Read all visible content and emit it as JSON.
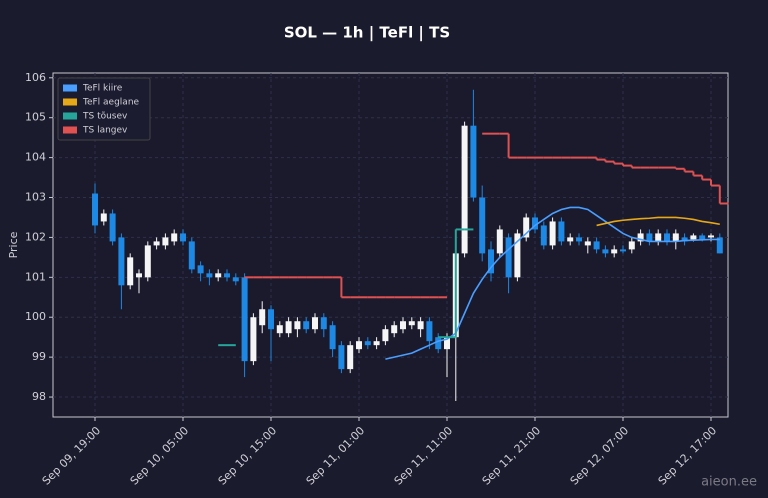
{
  "chart_data": {
    "type": "candlestick",
    "title": "SOL — 1h  |  TeFl  |  TS",
    "ylabel": "Price",
    "watermark": "aieon.ee",
    "categories": [
      "Sep 09, 19:00",
      null,
      null,
      null,
      null,
      null,
      null,
      null,
      null,
      null,
      "Sep 10, 05:00",
      null,
      null,
      null,
      null,
      null,
      null,
      null,
      null,
      null,
      "Sep 10, 15:00",
      null,
      null,
      null,
      null,
      null,
      null,
      null,
      null,
      null,
      "Sep 11, 01:00",
      null,
      null,
      null,
      null,
      null,
      null,
      null,
      null,
      null,
      "Sep 11, 11:00",
      null,
      null,
      null,
      null,
      null,
      null,
      null,
      null,
      null,
      "Sep 11, 21:00",
      null,
      null,
      null,
      null,
      null,
      null,
      null,
      null,
      null,
      "Sep 12, 07:00",
      null,
      null,
      null,
      null,
      null,
      null,
      null,
      null,
      null,
      "Sep 12, 17:00",
      null
    ],
    "open": [
      103.1,
      102.4,
      102.6,
      102.0,
      100.8,
      101.0,
      101.0,
      101.8,
      101.8,
      101.9,
      102.1,
      101.9,
      101.3,
      101.1,
      101.0,
      101.1,
      101.0,
      101.0,
      98.9,
      99.8,
      100.2,
      99.6,
      99.6,
      99.7,
      99.9,
      99.7,
      100.0,
      99.8,
      99.3,
      98.7,
      99.2,
      99.4,
      99.3,
      99.4,
      99.6,
      99.7,
      99.8,
      99.7,
      99.9,
      99.5,
      99.2,
      99.5,
      101.6,
      104.8,
      103.0,
      101.7,
      101.6,
      102.0,
      101.0,
      102.0,
      102.5,
      102.3,
      101.8,
      102.4,
      101.9,
      102.0,
      101.8,
      101.9,
      101.7,
      101.6,
      101.7,
      101.7,
      101.9,
      102.1,
      101.9,
      102.1,
      101.9,
      102.0,
      101.95,
      102.05,
      102.0,
      102.0
    ],
    "high": [
      103.35,
      102.7,
      102.7,
      102.1,
      101.6,
      101.2,
      101.9,
      102.0,
      102.1,
      102.2,
      102.2,
      102.0,
      101.4,
      101.2,
      101.2,
      101.2,
      101.1,
      101.1,
      100.1,
      100.4,
      100.3,
      99.9,
      100.0,
      100.0,
      100.0,
      100.1,
      100.1,
      99.9,
      99.4,
      99.4,
      99.5,
      99.5,
      99.5,
      99.8,
      99.9,
      100.0,
      100.0,
      100.0,
      100.0,
      99.6,
      99.6,
      101.7,
      104.9,
      105.7,
      103.3,
      101.9,
      102.3,
      102.1,
      102.2,
      102.6,
      102.6,
      102.4,
      102.5,
      102.5,
      102.1,
      102.1,
      102.0,
      102.0,
      101.8,
      101.8,
      101.8,
      102.0,
      102.2,
      102.2,
      102.2,
      102.2,
      102.2,
      102.1,
      102.1,
      102.1,
      102.1,
      102.1
    ],
    "low": [
      102.1,
      102.3,
      101.8,
      100.2,
      100.7,
      100.6,
      100.9,
      101.7,
      101.7,
      101.8,
      101.8,
      101.1,
      100.9,
      100.8,
      100.9,
      100.9,
      100.8,
      98.5,
      98.8,
      99.6,
      98.9,
      99.5,
      99.5,
      99.5,
      99.6,
      99.6,
      99.5,
      99.0,
      98.6,
      98.6,
      99.1,
      99.2,
      99.2,
      99.3,
      99.5,
      99.6,
      99.7,
      99.5,
      99.2,
      99.1,
      98.5,
      97.9,
      101.5,
      102.9,
      101.4,
      100.9,
      101.5,
      100.6,
      100.9,
      101.9,
      102.1,
      101.7,
      101.7,
      101.8,
      101.8,
      101.8,
      101.6,
      101.6,
      101.5,
      101.5,
      101.6,
      101.6,
      101.8,
      101.8,
      101.8,
      101.8,
      101.7,
      101.8,
      101.9,
      101.9,
      101.9,
      101.6
    ],
    "close": [
      102.3,
      102.6,
      101.9,
      100.8,
      101.5,
      101.1,
      101.8,
      101.9,
      102.0,
      102.1,
      101.9,
      101.2,
      101.1,
      101.0,
      101.1,
      101.0,
      100.9,
      98.9,
      100.0,
      100.2,
      99.7,
      99.8,
      99.9,
      99.9,
      99.7,
      100.0,
      99.7,
      99.2,
      98.7,
      99.3,
      99.4,
      99.3,
      99.4,
      99.7,
      99.8,
      99.9,
      99.9,
      99.9,
      99.4,
      99.2,
      99.5,
      101.6,
      104.8,
      103.0,
      101.6,
      101.1,
      102.2,
      101.0,
      102.1,
      102.5,
      102.2,
      101.8,
      102.4,
      101.9,
      102.0,
      101.9,
      101.9,
      101.7,
      101.6,
      101.7,
      101.65,
      101.9,
      102.1,
      101.9,
      102.1,
      101.9,
      102.1,
      101.9,
      102.05,
      101.95,
      102.05,
      101.6
    ],
    "up_color": "#f5f5f5",
    "down_color": "#1e88e5",
    "series": [
      {
        "name": "TeFl kiire",
        "color": "#4a9eff",
        "style": "line",
        "values": [
          null,
          null,
          null,
          null,
          null,
          null,
          null,
          null,
          null,
          null,
          null,
          null,
          null,
          null,
          null,
          null,
          null,
          null,
          null,
          null,
          null,
          null,
          null,
          null,
          null,
          null,
          null,
          null,
          null,
          null,
          null,
          null,
          null,
          98.95,
          99.0,
          99.05,
          99.1,
          99.2,
          99.3,
          99.4,
          99.45,
          99.6,
          100.1,
          100.6,
          100.95,
          101.25,
          101.5,
          101.7,
          101.9,
          102.1,
          102.3,
          102.45,
          102.6,
          102.7,
          102.75,
          102.75,
          102.7,
          102.55,
          102.4,
          102.25,
          102.1,
          102.0,
          101.95,
          101.9,
          101.9,
          101.9,
          101.9,
          101.92,
          101.93,
          101.94,
          101.95,
          101.95
        ]
      },
      {
        "name": "TeFl aeglane",
        "color": "#e6a817",
        "style": "line",
        "values": [
          null,
          null,
          null,
          null,
          null,
          null,
          null,
          null,
          null,
          null,
          null,
          null,
          null,
          null,
          null,
          null,
          null,
          null,
          null,
          null,
          null,
          null,
          null,
          null,
          null,
          null,
          null,
          null,
          null,
          null,
          null,
          null,
          null,
          null,
          null,
          null,
          null,
          null,
          null,
          null,
          null,
          null,
          null,
          null,
          null,
          null,
          null,
          null,
          null,
          null,
          null,
          null,
          null,
          null,
          null,
          null,
          null,
          102.3,
          102.35,
          102.4,
          102.43,
          102.45,
          102.47,
          102.48,
          102.5,
          102.5,
          102.5,
          102.48,
          102.45,
          102.4,
          102.37,
          102.33
        ]
      },
      {
        "name": "TS tõusev",
        "color": "#26a69a",
        "style": "step",
        "values": [
          null,
          null,
          null,
          null,
          null,
          null,
          null,
          null,
          null,
          null,
          null,
          null,
          null,
          null,
          99.3,
          99.3,
          null,
          null,
          null,
          null,
          null,
          null,
          null,
          null,
          null,
          null,
          null,
          null,
          null,
          null,
          null,
          null,
          null,
          null,
          null,
          null,
          null,
          null,
          null,
          99.5,
          99.5,
          102.2,
          102.2,
          null,
          null,
          null,
          null,
          null,
          null,
          null,
          null,
          null,
          null,
          null,
          null,
          null,
          null,
          null,
          null,
          null,
          null,
          null,
          null,
          null,
          null,
          null,
          null,
          null,
          null,
          null,
          null,
          null
        ]
      },
      {
        "name": "TS langev",
        "color": "#e05252",
        "style": "step",
        "values": [
          null,
          null,
          null,
          null,
          null,
          null,
          null,
          null,
          null,
          null,
          null,
          null,
          null,
          null,
          null,
          null,
          null,
          101.0,
          101.0,
          101.0,
          101.0,
          101.0,
          101.0,
          101.0,
          101.0,
          101.0,
          101.0,
          101.0,
          100.5,
          100.5,
          100.5,
          100.5,
          100.5,
          100.5,
          100.5,
          100.5,
          100.5,
          100.5,
          100.5,
          100.5,
          null,
          null,
          null,
          null,
          104.6,
          104.6,
          104.6,
          104.0,
          104.0,
          104.0,
          104.0,
          104.0,
          104.0,
          104.0,
          104.0,
          104.0,
          104.0,
          103.95,
          103.9,
          103.85,
          103.8,
          103.75,
          103.75,
          103.75,
          103.75,
          103.75,
          103.72,
          103.65,
          103.55,
          103.45,
          103.3,
          102.85
        ]
      }
    ],
    "ylim": [
      97.5,
      106.12
    ],
    "yticks": [
      98,
      99,
      100,
      101,
      102,
      103,
      104,
      105,
      106
    ],
    "grid": true,
    "legend": "upper left"
  }
}
